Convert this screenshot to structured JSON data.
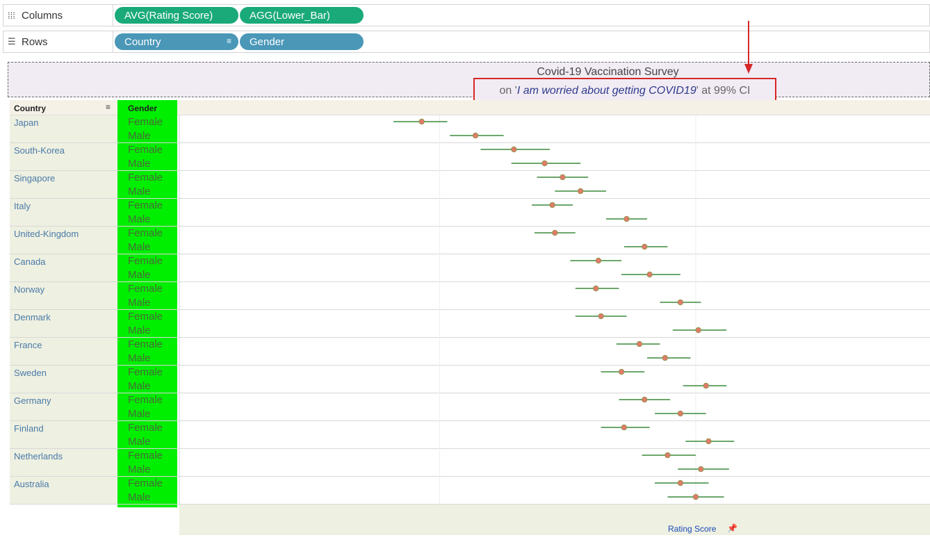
{
  "shelves": {
    "columns": {
      "label": "Columns",
      "pills": [
        "AVG(Rating Score)",
        "AGG(Lower_Bar)"
      ]
    },
    "rows": {
      "label": "Rows",
      "pills": [
        "Country",
        "Gender"
      ]
    }
  },
  "title": {
    "line1": "Covid-19 Vaccination Survey",
    "prefix": "on '",
    "quote": "I am worried about getting COVID19",
    "suffix": "' at 99% CI"
  },
  "headers": {
    "country": "Country",
    "gender": "Gender"
  },
  "colors": {
    "point": "#e07b6a",
    "ci_line": "#3a8a3a",
    "gender_band": "#00ee00",
    "annotation": "#d62728"
  },
  "chart_data": {
    "type": "scatter",
    "xlabel": "Rating Score",
    "ylabel": "",
    "xlim": [
      1,
      3.9
    ],
    "xticks": [
      1,
      2,
      3
    ],
    "grid": true,
    "ci_level": "99%",
    "rows": [
      {
        "country": "Japan",
        "gender": "Female",
        "mean": 1.93,
        "lo": 1.82,
        "hi": 2.03
      },
      {
        "country": "Japan",
        "gender": "Male",
        "mean": 2.14,
        "lo": 2.04,
        "hi": 2.25
      },
      {
        "country": "South-Korea",
        "gender": "Female",
        "mean": 2.29,
        "lo": 2.16,
        "hi": 2.43
      },
      {
        "country": "South-Korea",
        "gender": "Male",
        "mean": 2.41,
        "lo": 2.28,
        "hi": 2.55
      },
      {
        "country": "Singapore",
        "gender": "Female",
        "mean": 2.48,
        "lo": 2.38,
        "hi": 2.58
      },
      {
        "country": "Singapore",
        "gender": "Male",
        "mean": 2.55,
        "lo": 2.45,
        "hi": 2.65
      },
      {
        "country": "Italy",
        "gender": "Female",
        "mean": 2.44,
        "lo": 2.36,
        "hi": 2.52
      },
      {
        "country": "Italy",
        "gender": "Male",
        "mean": 2.73,
        "lo": 2.65,
        "hi": 2.81
      },
      {
        "country": "United-Kingdom",
        "gender": "Female",
        "mean": 2.45,
        "lo": 2.37,
        "hi": 2.53
      },
      {
        "country": "United-Kingdom",
        "gender": "Male",
        "mean": 2.8,
        "lo": 2.72,
        "hi": 2.89
      },
      {
        "country": "Canada",
        "gender": "Female",
        "mean": 2.62,
        "lo": 2.51,
        "hi": 2.71
      },
      {
        "country": "Canada",
        "gender": "Male",
        "mean": 2.82,
        "lo": 2.71,
        "hi": 2.94
      },
      {
        "country": "Norway",
        "gender": "Female",
        "mean": 2.61,
        "lo": 2.53,
        "hi": 2.7
      },
      {
        "country": "Norway",
        "gender": "Male",
        "mean": 2.94,
        "lo": 2.86,
        "hi": 3.02
      },
      {
        "country": "Denmark",
        "gender": "Female",
        "mean": 2.63,
        "lo": 2.53,
        "hi": 2.73
      },
      {
        "country": "Denmark",
        "gender": "Male",
        "mean": 3.01,
        "lo": 2.91,
        "hi": 3.12
      },
      {
        "country": "France",
        "gender": "Female",
        "mean": 2.78,
        "lo": 2.69,
        "hi": 2.86
      },
      {
        "country": "France",
        "gender": "Male",
        "mean": 2.88,
        "lo": 2.81,
        "hi": 2.98
      },
      {
        "country": "Sweden",
        "gender": "Female",
        "mean": 2.71,
        "lo": 2.63,
        "hi": 2.8
      },
      {
        "country": "Sweden",
        "gender": "Male",
        "mean": 3.04,
        "lo": 2.95,
        "hi": 3.12
      },
      {
        "country": "Germany",
        "gender": "Female",
        "mean": 2.8,
        "lo": 2.7,
        "hi": 2.9
      },
      {
        "country": "Germany",
        "gender": "Male",
        "mean": 2.94,
        "lo": 2.84,
        "hi": 3.04
      },
      {
        "country": "Finland",
        "gender": "Female",
        "mean": 2.72,
        "lo": 2.63,
        "hi": 2.82
      },
      {
        "country": "Finland",
        "gender": "Male",
        "mean": 3.05,
        "lo": 2.96,
        "hi": 3.15
      },
      {
        "country": "Netherlands",
        "gender": "Female",
        "mean": 2.89,
        "lo": 2.79,
        "hi": 3.0
      },
      {
        "country": "Netherlands",
        "gender": "Male",
        "mean": 3.02,
        "lo": 2.93,
        "hi": 3.13
      },
      {
        "country": "Australia",
        "gender": "Female",
        "mean": 2.94,
        "lo": 2.84,
        "hi": 3.05
      },
      {
        "country": "Australia",
        "gender": "Male",
        "mean": 3.0,
        "lo": 2.89,
        "hi": 3.11
      }
    ]
  }
}
